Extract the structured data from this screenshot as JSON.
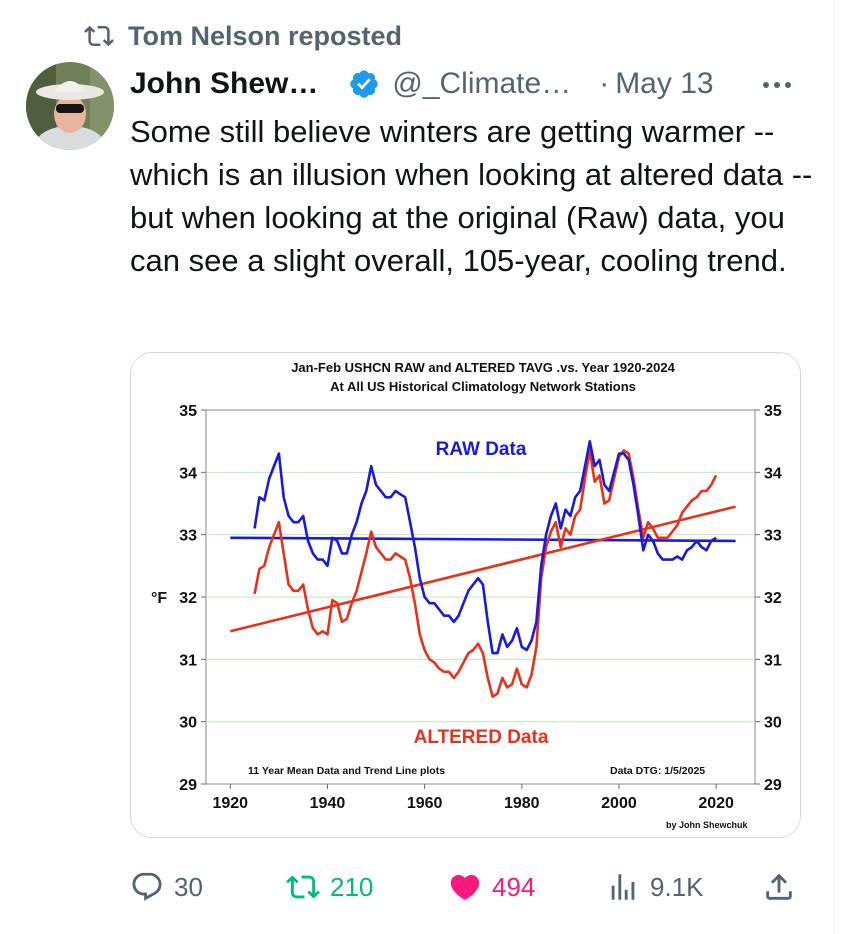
{
  "repost": {
    "text": "Tom Nelson reposted",
    "icon": "repost-icon"
  },
  "author": {
    "name": "John Shew…",
    "verified": true,
    "handle": "@_Climate…",
    "separator": "·",
    "date": "May 13",
    "avatar": "avatar-photo"
  },
  "tweet": {
    "text": "Some still believe winters are getting warmer -- which is an illusion when looking at altered data -- but when looking at the original (Raw) data, you can see a slight overall, 105-year, cooling trend."
  },
  "chart_data": {
    "type": "line",
    "title": "Jan-Feb USHCN RAW and ALTERED TAVG .vs. Year 1920-2024",
    "subtitle": "At All US Historical Climatology Network Stations",
    "ylabel": "°F",
    "xlim": [
      1915,
      2028
    ],
    "ylim": [
      29,
      35
    ],
    "xticks": [
      1920,
      1940,
      1960,
      1980,
      2000,
      2020
    ],
    "yticks": [
      29,
      30,
      31,
      32,
      33,
      34,
      35
    ],
    "grid": true,
    "annotations": {
      "raw_label": "RAW Data",
      "altered_label": "ALTERED Data",
      "footnote_left": "11 Year Mean Data and Trend Line plots",
      "footnote_right": "Data DTG: 1/5/2025",
      "credit": "by John Shewchuk"
    },
    "series": [
      {
        "name": "RAW Data",
        "color": "#1a1adc",
        "points": [
          [
            1925,
            33.1
          ],
          [
            1926,
            33.6
          ],
          [
            1927,
            33.55
          ],
          [
            1928,
            33.9
          ],
          [
            1929,
            34.1
          ],
          [
            1930,
            34.3
          ],
          [
            1931,
            33.6
          ],
          [
            1932,
            33.3
          ],
          [
            1933,
            33.2
          ],
          [
            1934,
            33.2
          ],
          [
            1935,
            33.3
          ],
          [
            1936,
            32.9
          ],
          [
            1937,
            32.7
          ],
          [
            1938,
            32.6
          ],
          [
            1939,
            32.6
          ],
          [
            1940,
            32.5
          ],
          [
            1941,
            32.95
          ],
          [
            1942,
            32.9
          ],
          [
            1943,
            32.7
          ],
          [
            1944,
            32.7
          ],
          [
            1945,
            33.0
          ],
          [
            1946,
            33.2
          ],
          [
            1947,
            33.5
          ],
          [
            1948,
            33.7
          ],
          [
            1949,
            34.1
          ],
          [
            1950,
            33.8
          ],
          [
            1951,
            33.7
          ],
          [
            1952,
            33.6
          ],
          [
            1953,
            33.6
          ],
          [
            1954,
            33.7
          ],
          [
            1955,
            33.65
          ],
          [
            1956,
            33.6
          ],
          [
            1957,
            33.2
          ],
          [
            1958,
            32.8
          ],
          [
            1959,
            32.3
          ],
          [
            1960,
            32.0
          ],
          [
            1961,
            31.9
          ],
          [
            1962,
            31.9
          ],
          [
            1963,
            31.8
          ],
          [
            1964,
            31.7
          ],
          [
            1965,
            31.7
          ],
          [
            1966,
            31.6
          ],
          [
            1967,
            31.7
          ],
          [
            1968,
            31.9
          ],
          [
            1969,
            32.1
          ],
          [
            1970,
            32.2
          ],
          [
            1971,
            32.3
          ],
          [
            1972,
            32.2
          ],
          [
            1973,
            31.6
          ],
          [
            1974,
            31.1
          ],
          [
            1975,
            31.1
          ],
          [
            1976,
            31.4
          ],
          [
            1977,
            31.2
          ],
          [
            1978,
            31.3
          ],
          [
            1979,
            31.5
          ],
          [
            1980,
            31.2
          ],
          [
            1981,
            31.15
          ],
          [
            1982,
            31.3
          ],
          [
            1983,
            31.6
          ],
          [
            1984,
            32.5
          ],
          [
            1985,
            33.0
          ],
          [
            1986,
            33.3
          ],
          [
            1987,
            33.5
          ],
          [
            1988,
            33.1
          ],
          [
            1989,
            33.4
          ],
          [
            1990,
            33.3
          ],
          [
            1991,
            33.6
          ],
          [
            1992,
            33.7
          ],
          [
            1993,
            34.1
          ],
          [
            1994,
            34.5
          ],
          [
            1995,
            34.1
          ],
          [
            1996,
            34.2
          ],
          [
            1997,
            33.8
          ],
          [
            1998,
            33.7
          ],
          [
            1999,
            34.0
          ],
          [
            2000,
            34.3
          ],
          [
            2001,
            34.3
          ],
          [
            2002,
            34.2
          ],
          [
            2003,
            33.8
          ],
          [
            2004,
            33.3
          ],
          [
            2005,
            32.75
          ],
          [
            2006,
            33.0
          ],
          [
            2007,
            32.9
          ],
          [
            2008,
            32.7
          ],
          [
            2009,
            32.6
          ],
          [
            2010,
            32.6
          ],
          [
            2011,
            32.6
          ],
          [
            2012,
            32.65
          ],
          [
            2013,
            32.6
          ],
          [
            2014,
            32.75
          ],
          [
            2015,
            32.8
          ],
          [
            2016,
            32.9
          ],
          [
            2017,
            32.8
          ],
          [
            2018,
            32.75
          ],
          [
            2019,
            32.9
          ],
          [
            2020,
            32.95
          ]
        ]
      },
      {
        "name": "ALTERED Data",
        "color": "#e8311b",
        "points": [
          [
            1925,
            32.05
          ],
          [
            1926,
            32.45
          ],
          [
            1927,
            32.5
          ],
          [
            1928,
            32.8
          ],
          [
            1929,
            33.0
          ],
          [
            1930,
            33.2
          ],
          [
            1931,
            32.7
          ],
          [
            1932,
            32.2
          ],
          [
            1933,
            32.1
          ],
          [
            1934,
            32.1
          ],
          [
            1935,
            32.2
          ],
          [
            1936,
            31.8
          ],
          [
            1937,
            31.5
          ],
          [
            1938,
            31.4
          ],
          [
            1939,
            31.45
          ],
          [
            1940,
            31.4
          ],
          [
            1941,
            31.95
          ],
          [
            1942,
            31.9
          ],
          [
            1943,
            31.6
          ],
          [
            1944,
            31.65
          ],
          [
            1945,
            31.9
          ],
          [
            1946,
            32.1
          ],
          [
            1947,
            32.4
          ],
          [
            1948,
            32.7
          ],
          [
            1949,
            33.05
          ],
          [
            1950,
            32.8
          ],
          [
            1951,
            32.7
          ],
          [
            1952,
            32.6
          ],
          [
            1953,
            32.6
          ],
          [
            1954,
            32.7
          ],
          [
            1955,
            32.65
          ],
          [
            1956,
            32.6
          ],
          [
            1957,
            32.3
          ],
          [
            1958,
            31.9
          ],
          [
            1959,
            31.4
          ],
          [
            1960,
            31.15
          ],
          [
            1961,
            31.0
          ],
          [
            1962,
            30.95
          ],
          [
            1963,
            30.85
          ],
          [
            1964,
            30.8
          ],
          [
            1965,
            30.8
          ],
          [
            1966,
            30.7
          ],
          [
            1967,
            30.8
          ],
          [
            1968,
            30.95
          ],
          [
            1969,
            31.1
          ],
          [
            1970,
            31.15
          ],
          [
            1971,
            31.25
          ],
          [
            1972,
            31.1
          ],
          [
            1973,
            30.7
          ],
          [
            1974,
            30.4
          ],
          [
            1975,
            30.45
          ],
          [
            1976,
            30.7
          ],
          [
            1977,
            30.55
          ],
          [
            1978,
            30.6
          ],
          [
            1979,
            30.85
          ],
          [
            1980,
            30.6
          ],
          [
            1981,
            30.55
          ],
          [
            1982,
            30.75
          ],
          [
            1983,
            31.2
          ],
          [
            1984,
            32.3
          ],
          [
            1985,
            32.8
          ],
          [
            1986,
            33.05
          ],
          [
            1987,
            33.2
          ],
          [
            1988,
            32.8
          ],
          [
            1989,
            33.1
          ],
          [
            1990,
            33.0
          ],
          [
            1991,
            33.3
          ],
          [
            1992,
            33.4
          ],
          [
            1993,
            33.9
          ],
          [
            1994,
            34.35
          ],
          [
            1995,
            33.85
          ],
          [
            1996,
            33.95
          ],
          [
            1997,
            33.5
          ],
          [
            1998,
            33.55
          ],
          [
            1999,
            33.9
          ],
          [
            2000,
            34.25
          ],
          [
            2001,
            34.35
          ],
          [
            2002,
            34.3
          ],
          [
            2003,
            33.9
          ],
          [
            2004,
            33.4
          ],
          [
            2005,
            32.95
          ],
          [
            2006,
            33.2
          ],
          [
            2007,
            33.1
          ],
          [
            2008,
            32.95
          ],
          [
            2009,
            32.95
          ],
          [
            2010,
            32.95
          ],
          [
            2011,
            33.05
          ],
          [
            2012,
            33.15
          ],
          [
            2013,
            33.35
          ],
          [
            2014,
            33.45
          ],
          [
            2015,
            33.55
          ],
          [
            2016,
            33.6
          ],
          [
            2017,
            33.7
          ],
          [
            2018,
            33.7
          ],
          [
            2019,
            33.8
          ],
          [
            2020,
            33.95
          ]
        ]
      },
      {
        "name": "RAW trend",
        "color": "#1a1adc",
        "points": [
          [
            1920,
            32.95
          ],
          [
            2024,
            32.9
          ]
        ]
      },
      {
        "name": "ALTERED trend",
        "color": "#e8311b",
        "points": [
          [
            1920,
            31.45
          ],
          [
            2024,
            33.45
          ]
        ]
      }
    ]
  },
  "actions": {
    "replies": "30",
    "reposts": "210",
    "likes": "494",
    "views": "9.1K",
    "share_icon": "share-icon"
  },
  "colors": {
    "muted": "#536471",
    "verified": "#1d9bf0",
    "repost_green": "#00ba7c",
    "like_pink": "#f91880"
  }
}
